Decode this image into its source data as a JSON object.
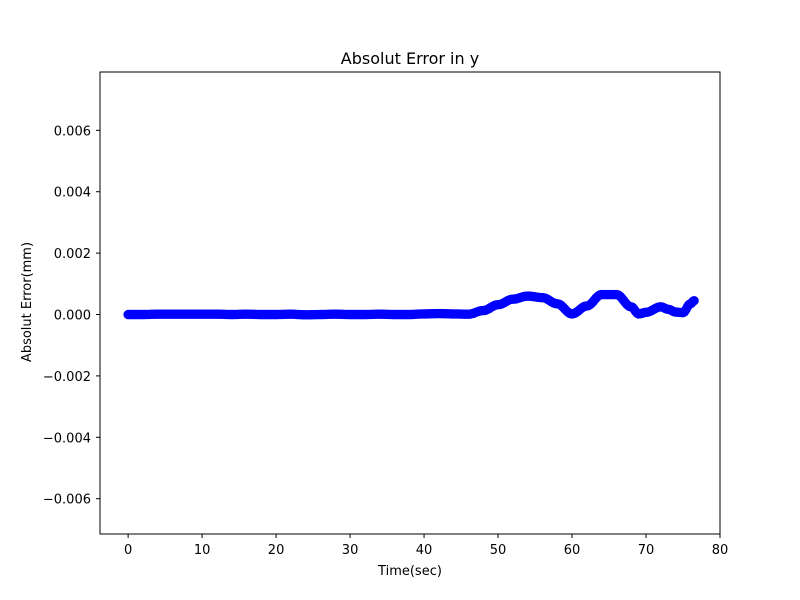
{
  "chart_data": {
    "type": "scatter",
    "title": "Absolut Error in y",
    "xlabel": "Time(sec)",
    "ylabel": "Absolut Error(mm)",
    "xlim": [
      -3.8,
      80.0
    ],
    "ylim": [
      -0.00715,
      0.0079
    ],
    "xticks": [
      0,
      10,
      20,
      30,
      40,
      50,
      60,
      70,
      80
    ],
    "yticks": [
      -0.006,
      -0.004,
      -0.002,
      0.0,
      0.002,
      0.004,
      0.006
    ],
    "xtick_labels": [
      "0",
      "10",
      "20",
      "30",
      "40",
      "50",
      "60",
      "70",
      "80"
    ],
    "ytick_labels": [
      "−0.006",
      "−0.004",
      "−0.002",
      "0.000",
      "0.002",
      "0.004",
      "0.006"
    ],
    "grid": false,
    "marker_color": "#0000ff",
    "series": [
      {
        "x": [
          0.0,
          2.0,
          4.0,
          6.0,
          8.0,
          10.0,
          12.0,
          14.0,
          16.0,
          18.0,
          20.0,
          22.0,
          24.0,
          26.0,
          28.0,
          30.0,
          32.0,
          34.0,
          36.0,
          38.0,
          40.0,
          42.0,
          44.0,
          46.0,
          48.0,
          50.0,
          52.0,
          54.0,
          56.0,
          58.0,
          60.0,
          62.0,
          64.0,
          66.0,
          68.0,
          69.0,
          70.0,
          72.0,
          73.0,
          74.0,
          75.0,
          76.0,
          76.5
        ],
        "y": [
          0.0,
          0.0,
          1e-05,
          1e-05,
          1e-05,
          1e-05,
          1e-05,
          0.0,
          1e-05,
          0.0,
          0.0,
          1e-05,
          -1e-05,
          0.0,
          1e-05,
          0.0,
          0.0,
          1e-05,
          0.0,
          0.0,
          2e-05,
          3e-05,
          2e-05,
          1e-05,
          0.00013,
          0.00032,
          0.0005,
          0.0006,
          0.00055,
          0.00035,
          2e-05,
          0.00028,
          0.00065,
          0.00065,
          0.00025,
          2e-05,
          7e-05,
          0.00025,
          0.00017,
          8e-05,
          6e-05,
          0.00035,
          0.00045
        ]
      }
    ]
  }
}
